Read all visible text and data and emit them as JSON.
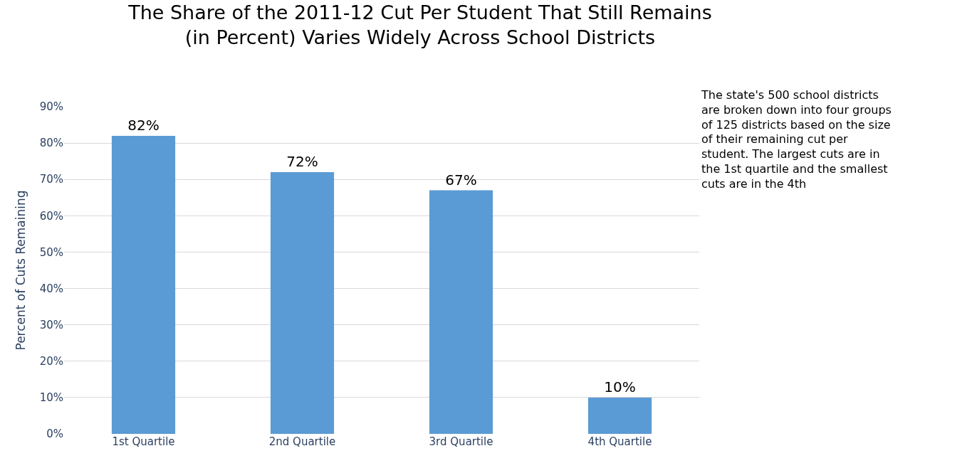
{
  "chart_data": {
    "type": "bar",
    "title": "The Share of the 2011-12 Cut Per Student That Still Remains (in Percent) Varies Widely Across School Districts",
    "ylabel": "Percent of Cuts Remaining",
    "categories": [
      "1st Quartile",
      "2nd Quartile",
      "3rd Quartile",
      "4th Quartile"
    ],
    "values": [
      82,
      72,
      67,
      10
    ],
    "value_labels": [
      "82%",
      "72%",
      "67%",
      "10%"
    ],
    "color": "#5b9bd5",
    "ylim": [
      0,
      90
    ],
    "yticks": [
      {
        "value": 0,
        "label": "0%"
      },
      {
        "value": 10,
        "label": "10%"
      },
      {
        "value": 20,
        "label": "20%"
      },
      {
        "value": 30,
        "label": "30%"
      },
      {
        "value": 40,
        "label": "40%"
      },
      {
        "value": 50,
        "label": "50%"
      },
      {
        "value": 60,
        "label": "60%"
      },
      {
        "value": 70,
        "label": "70%"
      },
      {
        "value": 80,
        "label": "80%"
      },
      {
        "value": 90,
        "label": "90%"
      }
    ],
    "grid": "y",
    "legend": false,
    "annotations": [
      "The state's 500 school districts are broken down into four groups of 125 districts based on the size of their remaining cut per student. The largest cuts are in the 1st quartile and the smallest cuts are in the 4th"
    ]
  }
}
